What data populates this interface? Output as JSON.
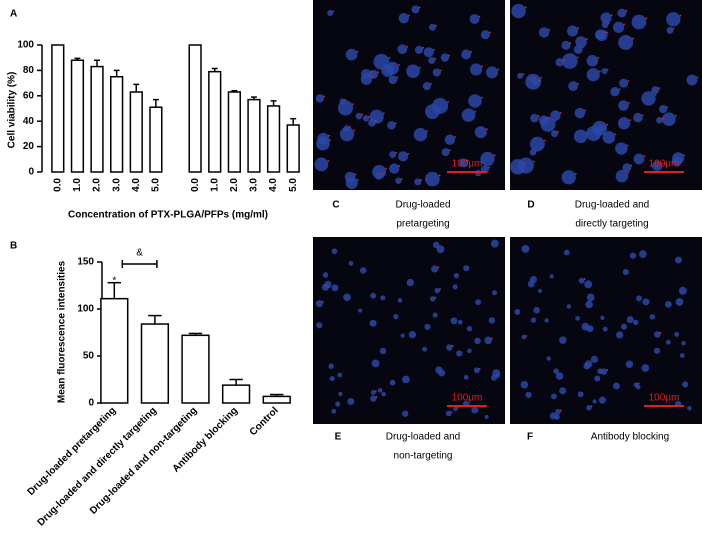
{
  "chart_data": [
    {
      "type": "bar",
      "label": "A",
      "ylabel": "Cell viability (%)",
      "xlabel": "Concentration of PTX-PLGA/PFPs (mg/ml)",
      "categories": [
        "0.0",
        "1.0",
        "2.0",
        "3.0",
        "4.0",
        "5.0",
        null,
        "0.0",
        "1.0",
        "2.0",
        "3.0",
        "4.0",
        "5.0"
      ],
      "values": [
        100,
        88,
        83,
        75,
        63,
        51,
        null,
        100,
        79,
        63,
        57,
        52,
        37
      ],
      "errors": [
        0,
        1.5,
        5,
        5,
        6,
        6,
        null,
        0,
        2.5,
        1,
        2,
        4,
        5
      ],
      "color": "#ffffff",
      "ylim": [
        0,
        100
      ],
      "yticks": [
        0,
        20,
        40,
        60,
        80,
        100
      ]
    },
    {
      "type": "bar",
      "label": "B",
      "ylabel": "Mean fluorescence intensities",
      "categories": [
        "Drug-loaded pretargeting",
        "Drug-loaded and directly targeting",
        "Drug-loaded and non-targeting",
        "Antibody blocking",
        "Control"
      ],
      "values": [
        111,
        84,
        72,
        19,
        7
      ],
      "errors": [
        17,
        9,
        2,
        6,
        2
      ],
      "color": "#ffffff",
      "ylim": [
        0,
        150
      ],
      "yticks": [
        0,
        50,
        100,
        150
      ],
      "annotations": [
        "*",
        "&"
      ]
    }
  ],
  "images": [
    {
      "letter": "C",
      "caption": [
        "Drug-loaded",
        "pretargeting"
      ],
      "scale_bar": "100μm"
    },
    {
      "letter": "D",
      "caption": [
        "Drug-loaded  and",
        "directly targeting"
      ],
      "scale_bar": "100μm"
    },
    {
      "letter": "E",
      "caption": [
        "Drug-loaded  and",
        "non-targeting"
      ],
      "scale_bar": "100μm"
    },
    {
      "letter": "F",
      "caption": [
        "Antibody blocking"
      ],
      "scale_bar": "100μm"
    }
  ]
}
